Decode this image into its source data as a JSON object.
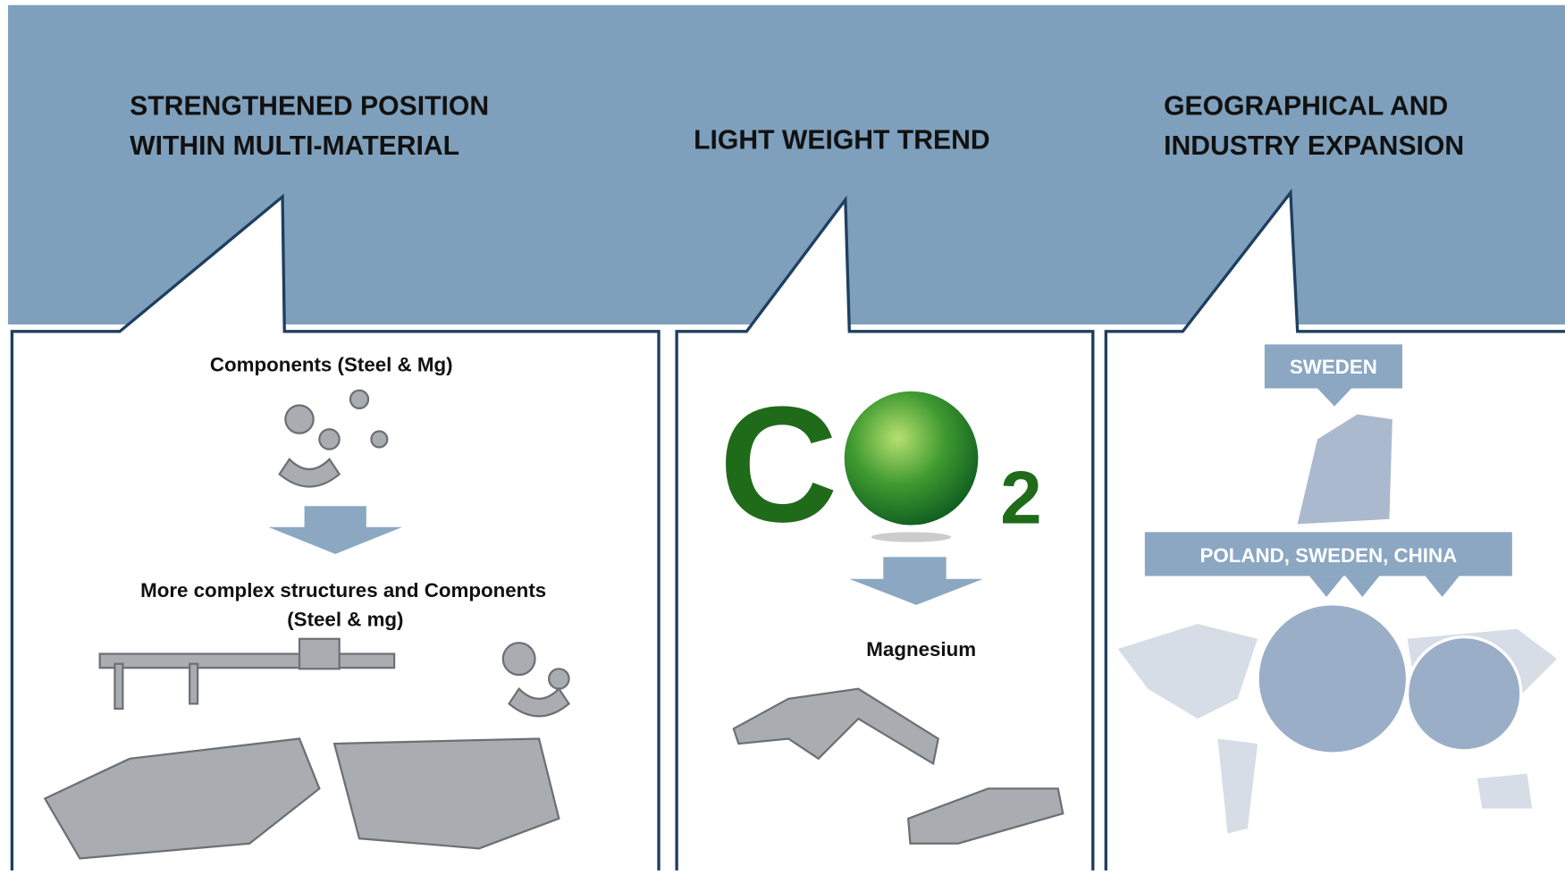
{
  "columns": [
    {
      "heading": [
        "STRENGTHENED POSITION",
        "WITHIN MULTI-MATERIAL"
      ],
      "captions": [
        "Components (Steel & Mg)",
        "More complex structures and Components",
        "(Steel & mg)"
      ]
    },
    {
      "heading": [
        "LIGHT WEIGHT TREND"
      ],
      "co2": {
        "letter": "C",
        "subscript": "2"
      },
      "captions": [
        "Magnesium"
      ]
    },
    {
      "heading": [
        "GEOGRAPHICAL AND",
        "INDUSTRY EXPANSION"
      ],
      "labels": [
        "SWEDEN",
        "POLAND, SWEDEN, CHINA"
      ]
    }
  ]
}
